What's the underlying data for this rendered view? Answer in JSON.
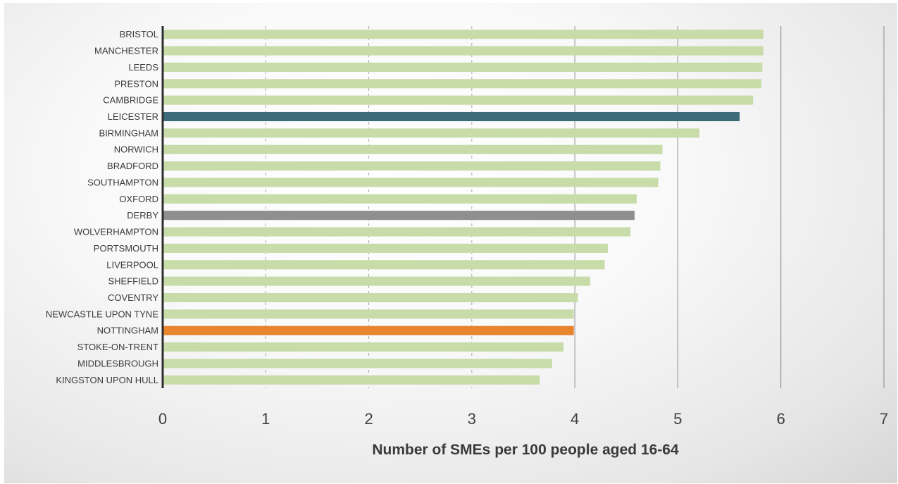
{
  "chart_data": {
    "type": "bar",
    "orientation": "horizontal",
    "title": "",
    "xlabel": "Number of SMEs per 100 people aged 16-64",
    "ylabel": "",
    "xlim": [
      0,
      7
    ],
    "xticks": [
      0,
      1,
      2,
      3,
      4,
      5,
      6,
      7
    ],
    "grid": "vertical",
    "categories": [
      "BRISTOL",
      "MANCHESTER",
      "LEEDS",
      "PRESTON",
      "CAMBRIDGE",
      "LEICESTER",
      "BIRMINGHAM",
      "NORWICH",
      "BRADFORD",
      "SOUTHAMPTON",
      "OXFORD",
      "DERBY",
      "WOLVERHAMPTON",
      "PORTSMOUTH",
      "LIVERPOOL",
      "SHEFFIELD",
      "COVENTRY",
      "NEWCASTLE UPON TYNE",
      "NOTTINGHAM",
      "STOKE-ON-TRENT",
      "MIDDLESBROUGH",
      "KINGSTON UPON HULL"
    ],
    "values": [
      5.83,
      5.83,
      5.82,
      5.81,
      5.73,
      5.6,
      5.21,
      4.85,
      4.83,
      4.81,
      4.6,
      4.58,
      4.54,
      4.32,
      4.29,
      4.15,
      4.03,
      3.99,
      3.99,
      3.89,
      3.78,
      3.66
    ],
    "colors": {
      "default": "#c8dca9",
      "LEICESTER": "#3d6b77",
      "DERBY": "#8f8f8f",
      "NOTTINGHAM": "#e8832e"
    }
  }
}
